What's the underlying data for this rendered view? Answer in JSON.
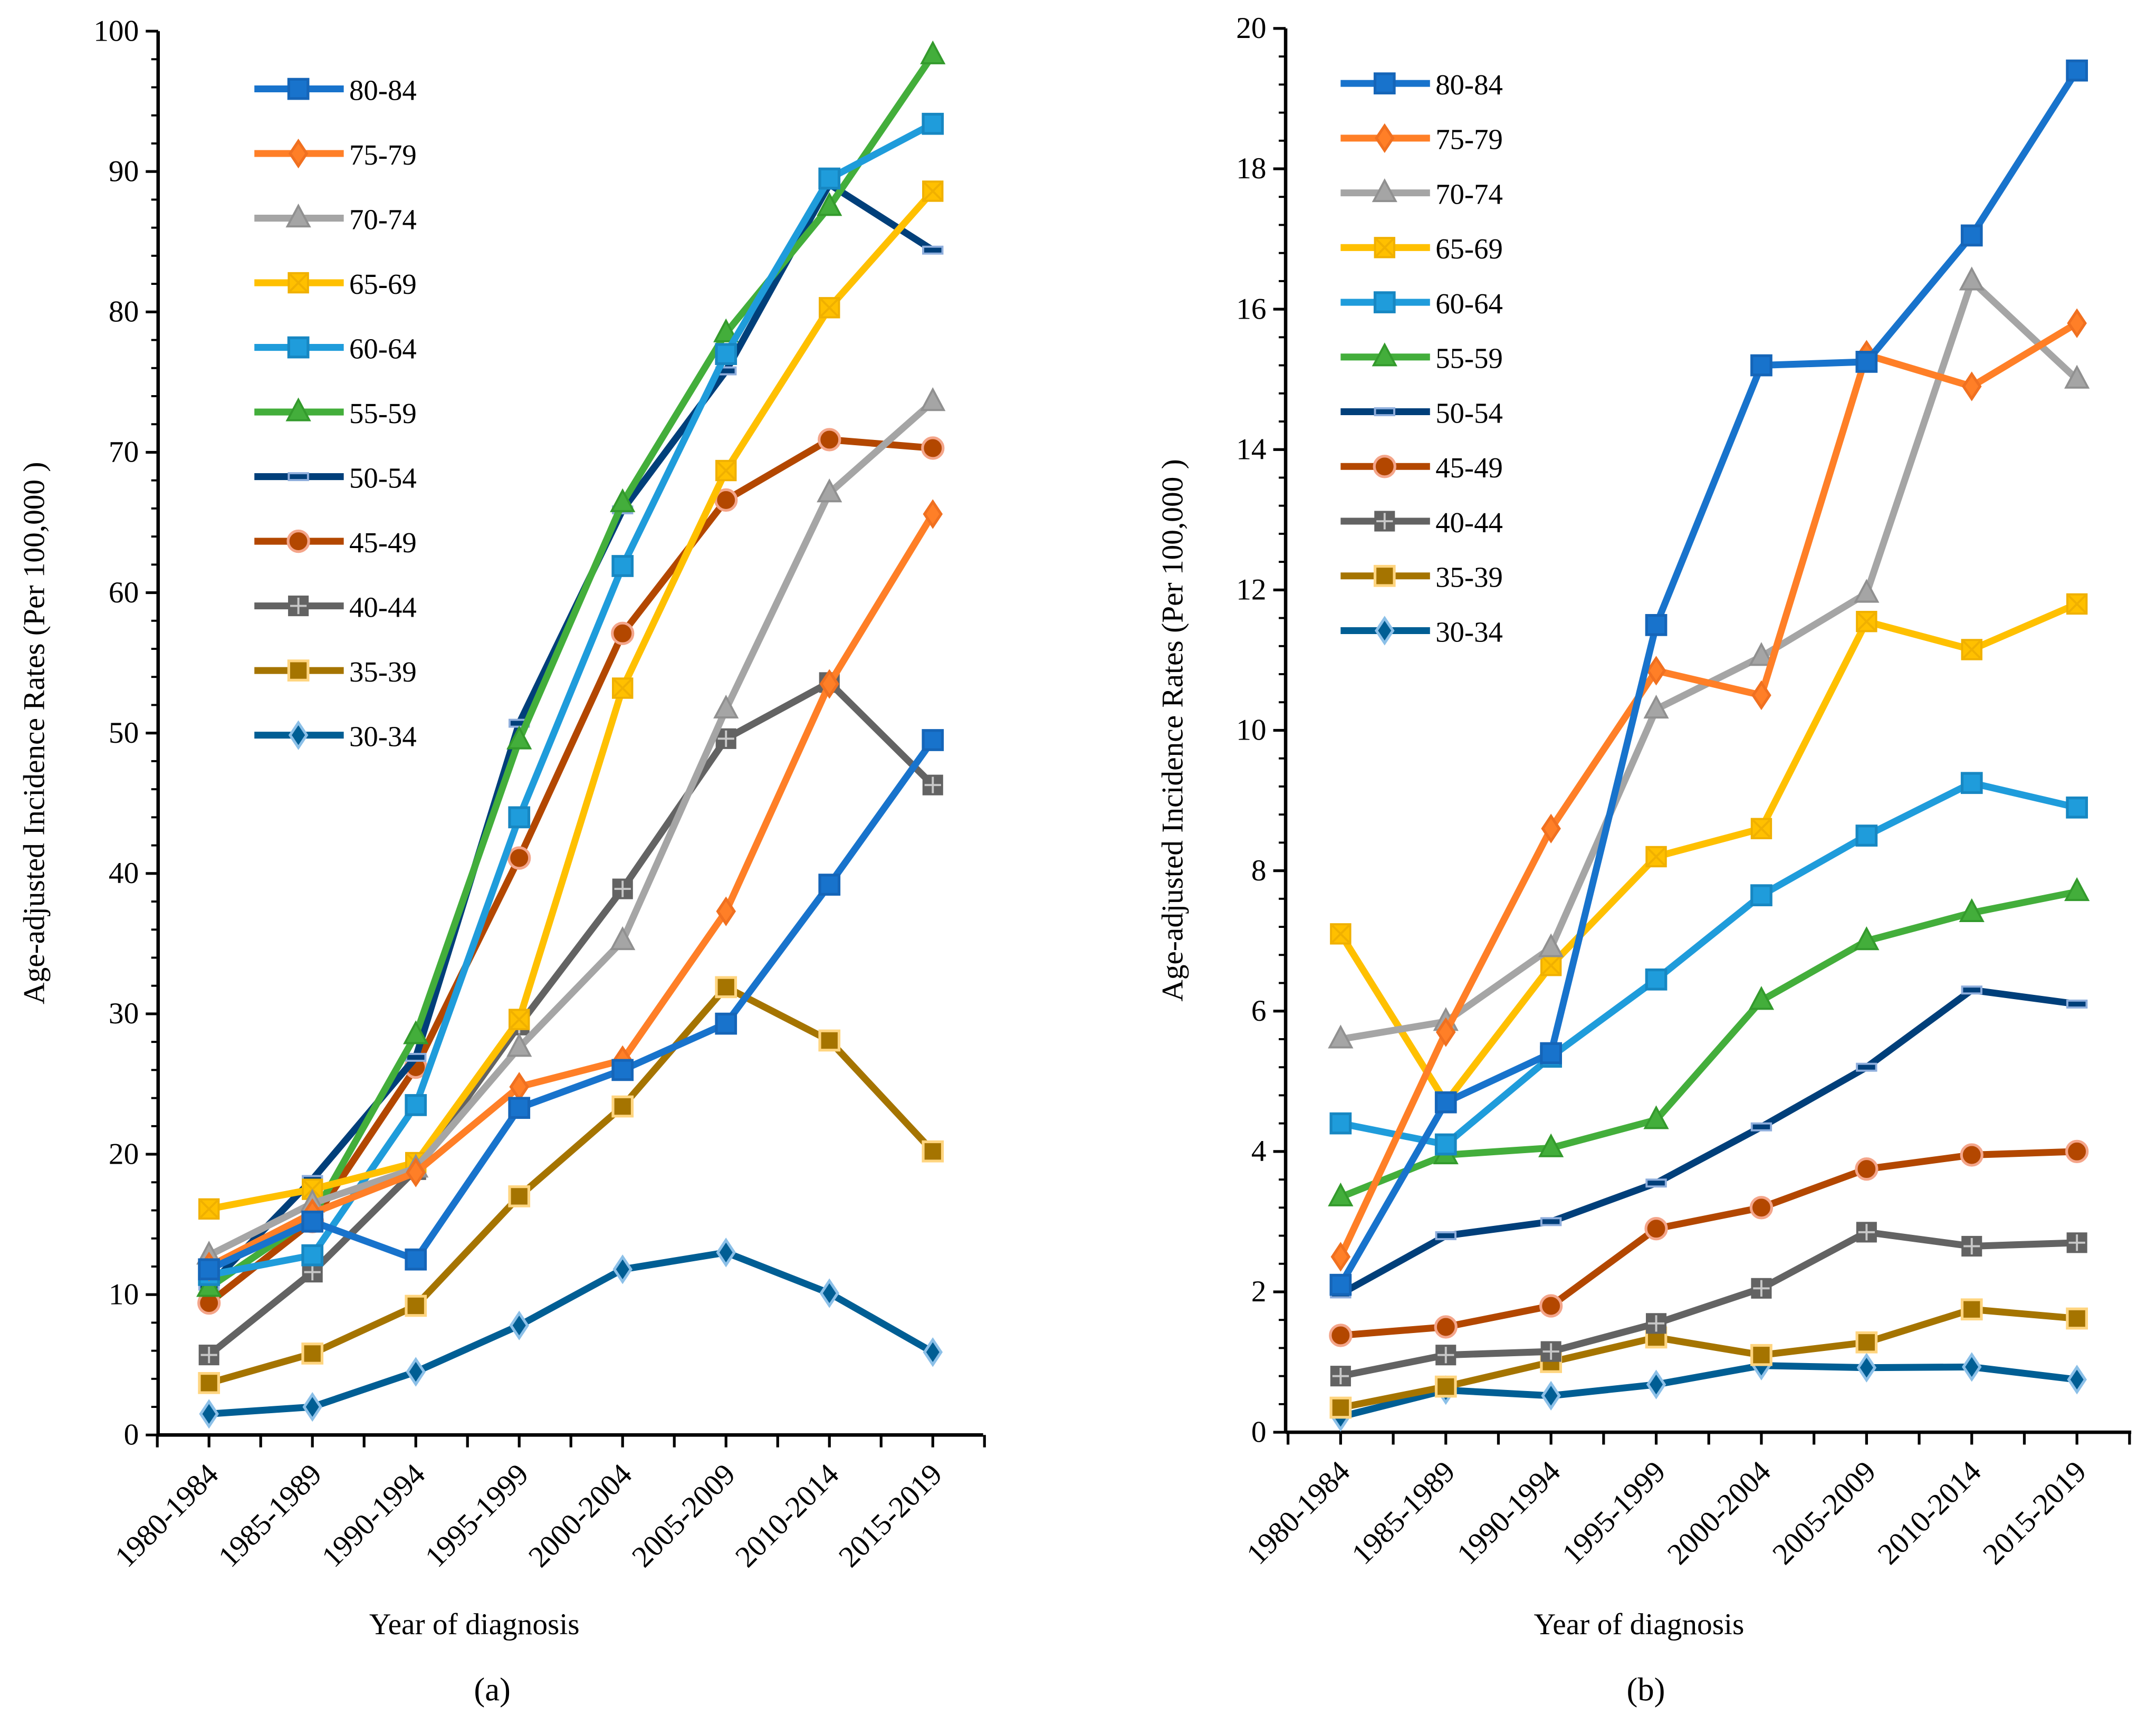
{
  "chart_data": [
    {
      "type": "line",
      "panel_label": "(a)",
      "xlabel": "Year of diagnosis",
      "ylabel": "Age-adjusted Incidence Rates (Per 100,000 )",
      "ylim": [
        0,
        100
      ],
      "ytick_step": 10,
      "legend_position": "top-left",
      "categories": [
        "1980-1984",
        "1985-1989",
        "1990-1994",
        "1995-1999",
        "2000-2004",
        "2005-2009",
        "2010-2014",
        "2015-2019"
      ],
      "series": [
        {
          "name": "80-84",
          "values": [
            11.8,
            15.2,
            12.5,
            23.3,
            26.0,
            29.3,
            39.2,
            49.5
          ]
        },
        {
          "name": "75-79",
          "values": [
            12.0,
            15.8,
            18.7,
            24.8,
            26.7,
            37.3,
            53.5,
            65.6
          ]
        },
        {
          "name": "70-74",
          "values": [
            12.8,
            16.5,
            19.0,
            27.6,
            35.2,
            51.7,
            67.1,
            73.6
          ]
        },
        {
          "name": "65-69",
          "values": [
            16.1,
            17.5,
            19.4,
            29.6,
            53.2,
            68.7,
            80.3,
            88.6
          ]
        },
        {
          "name": "60-64",
          "values": [
            11.4,
            12.8,
            23.5,
            44.0,
            61.9,
            77.0,
            89.5,
            93.4
          ]
        },
        {
          "name": "55-59",
          "values": [
            10.5,
            15.5,
            28.5,
            49.5,
            66.4,
            78.5,
            87.5,
            98.3
          ]
        },
        {
          "name": "50-54",
          "values": [
            10.6,
            18.2,
            26.9,
            50.7,
            65.9,
            75.8,
            89.1,
            84.4
          ]
        },
        {
          "name": "45-49",
          "values": [
            9.4,
            15.2,
            26.2,
            41.1,
            57.1,
            66.6,
            70.9,
            70.3
          ]
        },
        {
          "name": "40-44",
          "values": [
            5.7,
            11.6,
            18.9,
            29.2,
            38.9,
            49.6,
            53.6,
            46.3
          ]
        },
        {
          "name": "35-39",
          "values": [
            3.7,
            5.8,
            9.2,
            17.0,
            23.4,
            31.9,
            28.1,
            20.2
          ]
        },
        {
          "name": "30-34",
          "values": [
            1.5,
            2.0,
            4.5,
            7.8,
            11.8,
            13.0,
            10.1,
            5.9
          ]
        }
      ]
    },
    {
      "type": "line",
      "panel_label": "(b)",
      "xlabel": "Year of diagnosis",
      "ylabel": "Age-adjusted Incidence Rates (Per 100,000 )",
      "ylim": [
        0,
        20
      ],
      "ytick_step": 2,
      "legend_position": "top-left",
      "categories": [
        "1980-1984",
        "1985-1989",
        "1990-1994",
        "1995-1999",
        "2000-2004",
        "2005-2009",
        "2010-2014",
        "2015-2019"
      ],
      "series": [
        {
          "name": "80-84",
          "values": [
            2.1,
            4.7,
            5.4,
            11.5,
            15.2,
            15.25,
            17.05,
            19.4
          ]
        },
        {
          "name": "75-79",
          "values": [
            2.5,
            5.7,
            8.6,
            10.85,
            10.5,
            15.35,
            14.9,
            15.8
          ]
        },
        {
          "name": "70-74",
          "values": [
            5.6,
            5.85,
            6.9,
            10.3,
            11.05,
            11.95,
            16.4,
            15.0
          ]
        },
        {
          "name": "65-69",
          "values": [
            7.1,
            4.7,
            6.65,
            8.2,
            8.6,
            11.55,
            11.15,
            11.8
          ]
        },
        {
          "name": "60-64",
          "values": [
            4.4,
            4.1,
            5.35,
            6.45,
            7.65,
            8.5,
            9.25,
            8.9
          ]
        },
        {
          "name": "55-59",
          "values": [
            3.35,
            3.95,
            4.05,
            4.45,
            6.15,
            7.0,
            7.4,
            7.7
          ]
        },
        {
          "name": "50-54",
          "values": [
            1.97,
            2.8,
            3.0,
            3.55,
            4.35,
            5.2,
            6.3,
            6.1
          ]
        },
        {
          "name": "45-49",
          "values": [
            1.38,
            1.5,
            1.8,
            2.9,
            3.2,
            3.75,
            3.95,
            4.0
          ]
        },
        {
          "name": "40-44",
          "values": [
            0.8,
            1.1,
            1.15,
            1.55,
            2.05,
            2.85,
            2.65,
            2.7
          ]
        },
        {
          "name": "35-39",
          "values": [
            0.35,
            0.65,
            1.0,
            1.35,
            1.1,
            1.28,
            1.75,
            1.62
          ]
        },
        {
          "name": "30-34",
          "values": [
            0.22,
            0.6,
            0.52,
            0.68,
            0.95,
            0.92,
            0.93,
            0.75
          ]
        }
      ]
    }
  ],
  "styles": {
    "80-84": {
      "color": "#1873CC",
      "edge": "#1565B8",
      "marker": "square"
    },
    "75-79": {
      "color": "#FF7F27",
      "edge": "#F07020",
      "marker": "diamond"
    },
    "70-74": {
      "color": "#A5A5A5",
      "edge": "#909090",
      "marker": "triangle"
    },
    "65-69": {
      "color": "#FFC000",
      "edge": "#F0B000",
      "marker": "xsquare"
    },
    "60-64": {
      "color": "#1F9CDB",
      "edge": "#1787C2",
      "marker": "square"
    },
    "55-59": {
      "color": "#43AE3B",
      "edge": "#339A2C",
      "marker": "triangle"
    },
    "50-54": {
      "color": "#003F7A",
      "edge": "#8FAEDC",
      "marker": "dash"
    },
    "45-49": {
      "color": "#B34700",
      "edge": "#F4A58A",
      "marker": "circle"
    },
    "40-44": {
      "color": "#636363",
      "edge": "#C8C8C8",
      "marker": "plus"
    },
    "35-39": {
      "color": "#A57400",
      "edge": "#FFD580",
      "marker": "square"
    },
    "30-34": {
      "color": "#005E94",
      "edge": "#8CC0E8",
      "marker": "diamond"
    }
  }
}
